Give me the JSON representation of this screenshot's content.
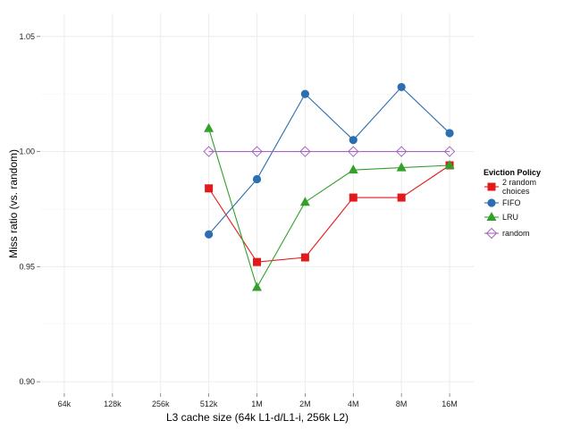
{
  "chart_data": {
    "type": "line",
    "title": "",
    "xlabel": "L3 cache size (64k L1-d/L1-i, 256k L2)",
    "ylabel": "Miss ratio (vs. random)",
    "categories": [
      "64k",
      "128k",
      "256k",
      "512k",
      "1M",
      "2M",
      "4M",
      "8M",
      "16M"
    ],
    "ylim": [
      0.895,
      1.06
    ],
    "yticks": [
      0.9,
      0.95,
      1.0,
      1.05
    ],
    "ytick_labels": [
      "0.90",
      "0.95",
      "1.00",
      "1.05"
    ],
    "grid": true,
    "legend": {
      "title": "Eviction Policy",
      "position": "right"
    },
    "series": [
      {
        "name": "2 random choices",
        "label_lines": [
          "2 random",
          "choices"
        ],
        "color": "#E31A1C",
        "marker": "square",
        "values": [
          null,
          null,
          null,
          0.984,
          0.952,
          0.954,
          0.98,
          0.98,
          0.994
        ]
      },
      {
        "name": "FIFO",
        "label_lines": [
          "FIFO"
        ],
        "color": "#2B6FB0",
        "marker": "circle",
        "values": [
          null,
          null,
          null,
          0.964,
          0.988,
          1.025,
          1.005,
          1.028,
          1.008
        ]
      },
      {
        "name": "LRU",
        "label_lines": [
          "LRU"
        ],
        "color": "#33A02C",
        "marker": "triangle",
        "values": [
          null,
          null,
          null,
          1.01,
          0.941,
          0.978,
          0.992,
          0.993,
          0.994
        ]
      },
      {
        "name": "random",
        "label_lines": [
          "random"
        ],
        "color": "#A465C0",
        "marker": "diamond-open",
        "values": [
          null,
          null,
          null,
          1.0,
          1.0,
          1.0,
          1.0,
          1.0,
          1.0
        ]
      }
    ]
  }
}
